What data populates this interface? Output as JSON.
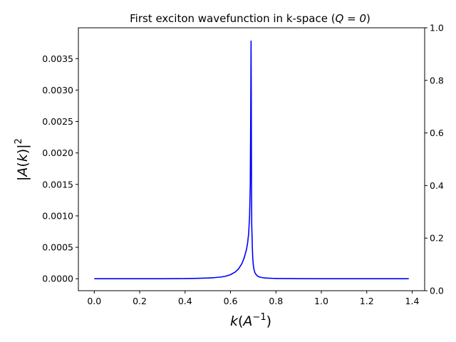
{
  "chart_data": {
    "type": "line",
    "title": "First exciton wavefunction in k-space (Q = 0)",
    "title_prefix": "First exciton wavefunction in k-space (",
    "title_math": "Q = 0",
    "title_suffix": ")",
    "xlabel": "k(A^-1)",
    "ylabel": "|A(k)|^2",
    "xlim": [
      -0.07,
      1.455
    ],
    "ylim": [
      -0.00019,
      0.00399
    ],
    "y2lim": [
      0,
      1
    ],
    "grid": false,
    "legend": "none",
    "xticks": [
      "0.0",
      "0.2",
      "0.4",
      "0.6",
      "0.8",
      "1.0",
      "1.2",
      "1.4"
    ],
    "xtick_values": [
      0.0,
      0.2,
      0.4,
      0.6,
      0.8,
      1.0,
      1.2,
      1.4
    ],
    "yticks": [
      "0.0000",
      "0.0005",
      "0.0010",
      "0.0015",
      "0.0020",
      "0.0025",
      "0.0030",
      "0.0035"
    ],
    "ytick_values": [
      0.0,
      0.0005,
      0.001,
      0.0015,
      0.002,
      0.0025,
      0.003,
      0.0035
    ],
    "y2ticks": [
      "0.0",
      "0.2",
      "0.4",
      "0.6",
      "0.8",
      "1.0"
    ],
    "y2tick_values": [
      0.0,
      0.2,
      0.4,
      0.6,
      0.8,
      1.0
    ],
    "series": [
      {
        "color": "#0000ff",
        "x": [
          0.0,
          0.1,
          0.2,
          0.3,
          0.4,
          0.45,
          0.5,
          0.53,
          0.56,
          0.58,
          0.6,
          0.62,
          0.635,
          0.65,
          0.66,
          0.67,
          0.675,
          0.68,
          0.684,
          0.687,
          0.689,
          0.6905,
          0.6915,
          0.6925,
          0.6935,
          0.695,
          0.696,
          0.697,
          0.698,
          0.7,
          0.703,
          0.707,
          0.712,
          0.72,
          0.73,
          0.745,
          0.76,
          0.78,
          0.8,
          0.85,
          0.9,
          1.0,
          1.1,
          1.2,
          1.3,
          1.385
        ],
        "y": [
          0.0,
          0.0,
          0.0,
          1e-06,
          3e-06,
          6e-06,
          1.2e-05,
          1.8e-05,
          2.8e-05,
          4.2e-05,
          6.5e-05,
          0.000105,
          0.000155,
          0.00024,
          0.00033,
          0.00046,
          0.00056,
          0.00072,
          0.001,
          0.0015,
          0.0026,
          0.00378,
          0.0028,
          0.00145,
          0.00085,
          0.00066,
          0.0005,
          0.00042,
          0.00033,
          0.00023,
          0.000155,
          0.0001,
          7e-05,
          4e-05,
          2.5e-05,
          1.5e-05,
          1e-05,
          7e-06,
          5e-06,
          3e-06,
          2e-06,
          1e-06,
          1e-06,
          0.0,
          0.0,
          0.0
        ]
      }
    ]
  }
}
